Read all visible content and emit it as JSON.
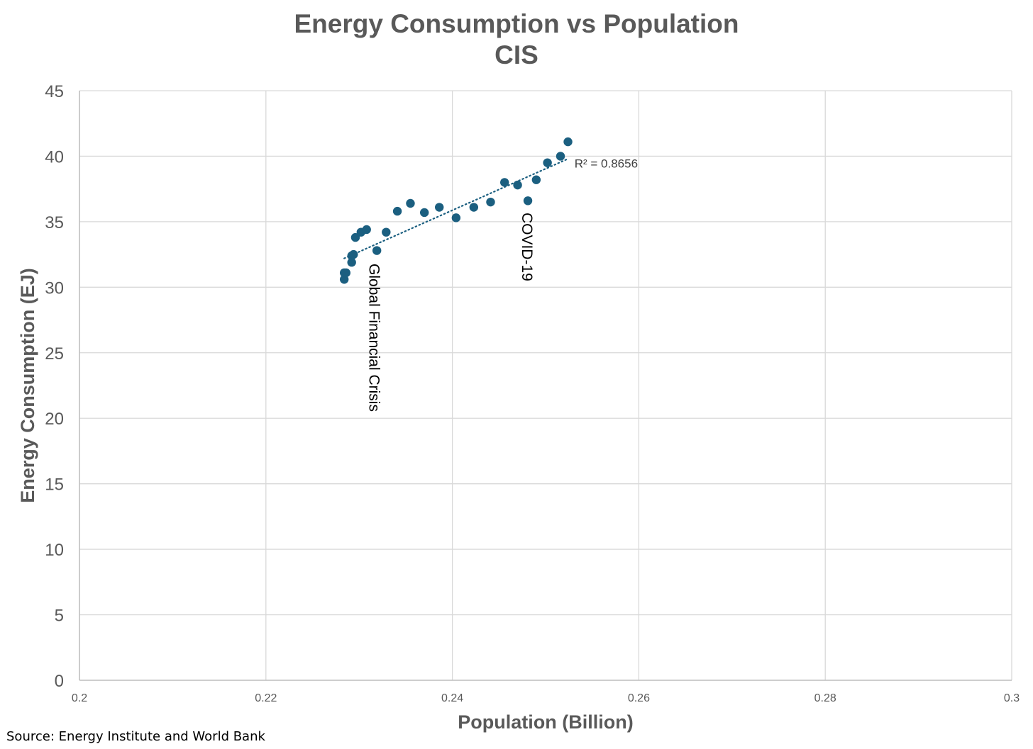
{
  "chart_data": {
    "type": "scatter",
    "title": [
      "Energy Consumption vs Population",
      "CIS"
    ],
    "xlabel": "Population (Billion)",
    "ylabel": "Energy Consumption (EJ)",
    "xlim": [
      0.2,
      0.3
    ],
    "ylim": [
      0,
      45
    ],
    "x_ticks": [
      0.2,
      0.22,
      0.24,
      0.26,
      0.28,
      0.3
    ],
    "x_tick_labels": [
      "0.2",
      "0.22",
      "0.24",
      "0.26",
      "0.28",
      "0.3"
    ],
    "y_ticks": [
      0,
      5,
      10,
      15,
      20,
      25,
      30,
      35,
      40,
      45
    ],
    "y_tick_labels": [
      "0",
      "5",
      "10",
      "15",
      "20",
      "25",
      "30",
      "35",
      "40",
      "45"
    ],
    "grid": true,
    "series": [
      {
        "name": "CIS",
        "color": "#1b5f80",
        "points": [
          {
            "x": 0.2284,
            "y": 30.6
          },
          {
            "x": 0.2284,
            "y": 31.1
          },
          {
            "x": 0.2286,
            "y": 31.1
          },
          {
            "x": 0.2292,
            "y": 31.9
          },
          {
            "x": 0.2292,
            "y": 32.4
          },
          {
            "x": 0.2294,
            "y": 32.5
          },
          {
            "x": 0.2296,
            "y": 33.8
          },
          {
            "x": 0.2302,
            "y": 34.2
          },
          {
            "x": 0.2308,
            "y": 34.4
          },
          {
            "x": 0.2319,
            "y": 32.8
          },
          {
            "x": 0.2329,
            "y": 34.2
          },
          {
            "x": 0.2341,
            "y": 35.8
          },
          {
            "x": 0.2355,
            "y": 36.4
          },
          {
            "x": 0.237,
            "y": 35.7
          },
          {
            "x": 0.2386,
            "y": 36.1
          },
          {
            "x": 0.2404,
            "y": 35.3
          },
          {
            "x": 0.2423,
            "y": 36.1
          },
          {
            "x": 0.2441,
            "y": 36.5
          },
          {
            "x": 0.2456,
            "y": 38.0
          },
          {
            "x": 0.247,
            "y": 37.8
          },
          {
            "x": 0.2481,
            "y": 36.6
          },
          {
            "x": 0.249,
            "y": 38.2
          },
          {
            "x": 0.2502,
            "y": 39.5
          },
          {
            "x": 0.2516,
            "y": 40.0
          },
          {
            "x": 0.2524,
            "y": 41.1
          }
        ]
      }
    ],
    "trendline": {
      "type": "linear",
      "style": "dotted",
      "color": "#1b5f80",
      "from": {
        "x": 0.2284,
        "y": 32.2
      },
      "to": {
        "x": 0.2524,
        "y": 39.8
      },
      "label": "R² = 0.8656",
      "label_anchor": {
        "x": 0.2531,
        "y": 39.4
      }
    },
    "annotations": [
      {
        "text": "Global Financial Crisis",
        "x": 0.2311,
        "y": 31.8,
        "rotation": 90
      },
      {
        "text": "COVID-19",
        "x": 0.2475,
        "y": 35.7,
        "rotation": 90
      }
    ]
  },
  "source": "Source: Energy Institute and World Bank"
}
